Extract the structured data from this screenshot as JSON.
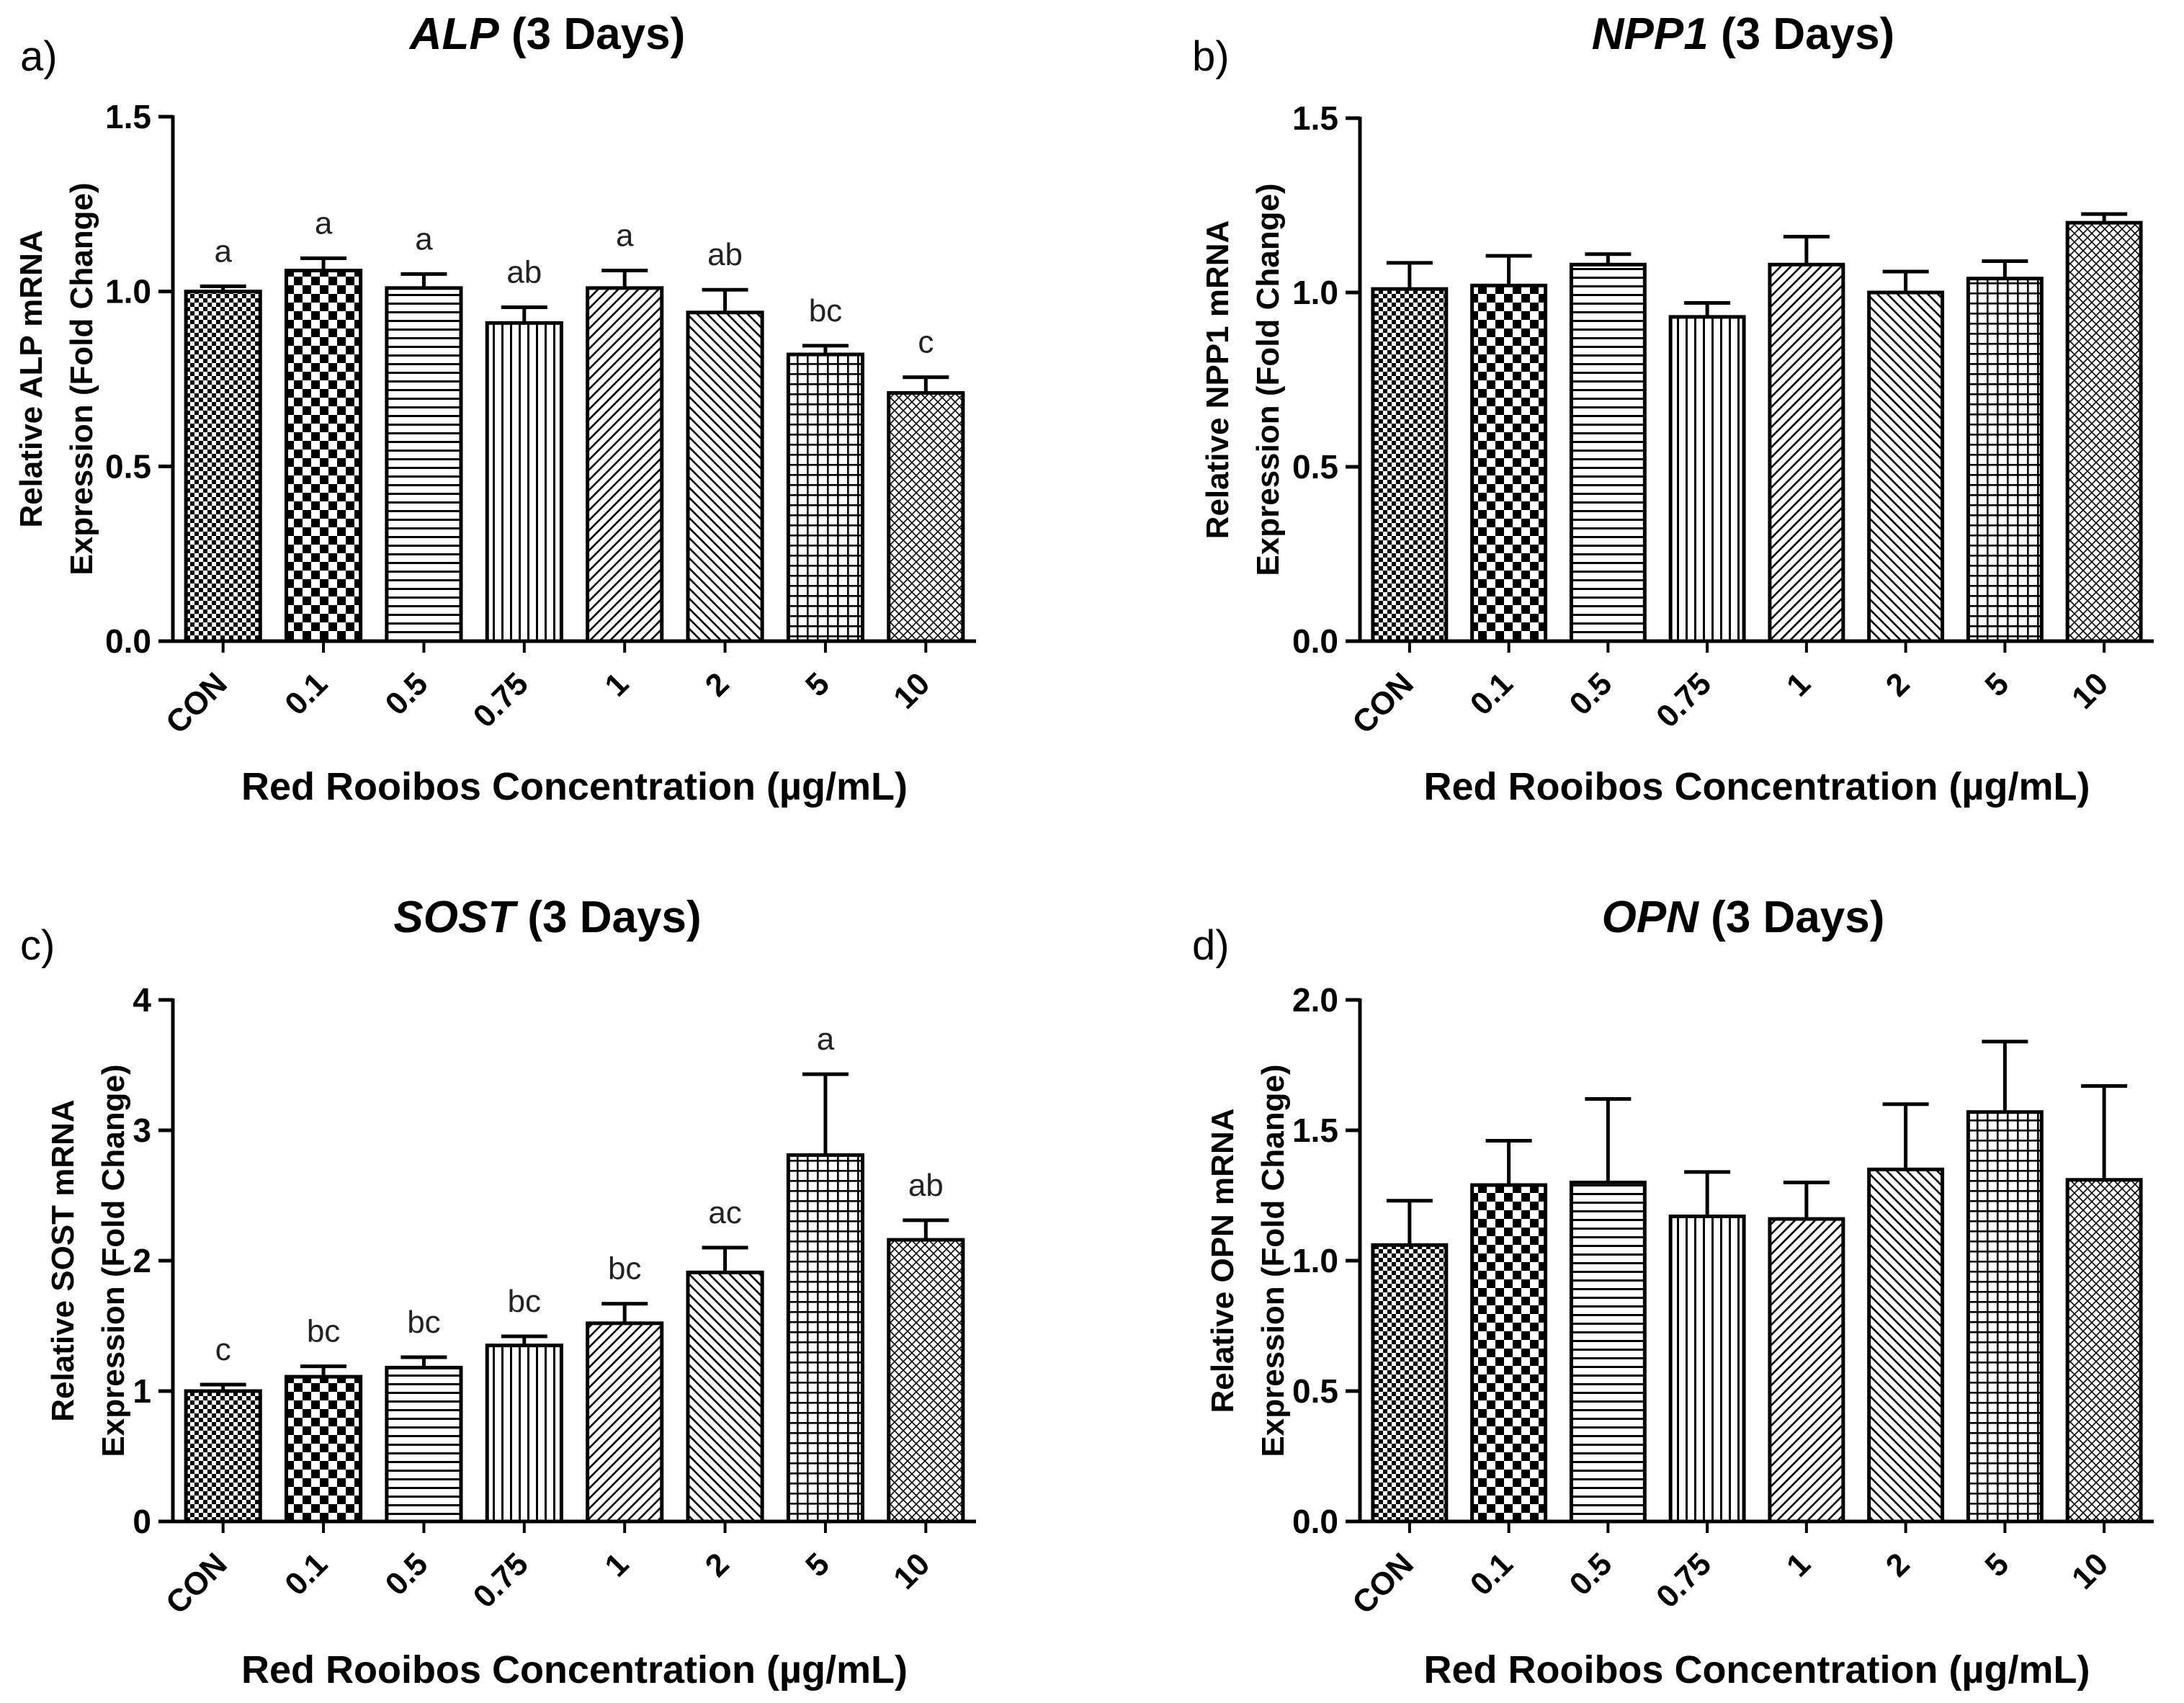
{
  "chart_data": [
    {
      "panel": "a)",
      "type": "bar",
      "title_gene": "ALP",
      "title_suffix": " (3 Days)",
      "ylabel_line1": "Relative ALP mRNA",
      "ylabel_line2": "Expression (Fold Change)",
      "xlabel": "Red Rooibos Concentration (µg/mL)",
      "categories": [
        "CON",
        "0.1",
        "0.5",
        "0.75",
        "1",
        "2",
        "5",
        "10"
      ],
      "values": [
        1.0,
        1.06,
        1.01,
        0.91,
        1.01,
        0.94,
        0.82,
        0.71
      ],
      "errors": [
        0.015,
        0.035,
        0.04,
        0.045,
        0.05,
        0.065,
        0.025,
        0.045
      ],
      "significance": [
        "a",
        "a",
        "a",
        "ab",
        "a",
        "ab",
        "bc",
        "c"
      ],
      "ylim": [
        0,
        1.5
      ],
      "yticks": [
        "0.0",
        "0.5",
        "1.0",
        "1.5"
      ],
      "ytick_values": [
        0,
        0.5,
        1.0,
        1.5
      ]
    },
    {
      "panel": "b)",
      "type": "bar",
      "title_gene": "NPP1",
      "title_suffix": " (3 Days)",
      "ylabel_line1": "Relative NPP1 mRNA",
      "ylabel_line2": "Expression (Fold Change)",
      "xlabel": "Red Rooibos Concentration (µg/mL)",
      "categories": [
        "CON",
        "0.1",
        "0.5",
        "0.75",
        "1",
        "2",
        "5",
        "10"
      ],
      "values": [
        1.01,
        1.02,
        1.08,
        0.93,
        1.08,
        1.0,
        1.04,
        1.2
      ],
      "errors": [
        0.075,
        0.085,
        0.03,
        0.04,
        0.08,
        0.06,
        0.05,
        0.025
      ],
      "significance": [],
      "ylim": [
        0,
        1.5
      ],
      "yticks": [
        "0.0",
        "0.5",
        "1.0",
        "1.5"
      ],
      "ytick_values": [
        0,
        0.5,
        1.0,
        1.5
      ]
    },
    {
      "panel": "c)",
      "type": "bar",
      "title_gene": "SOST",
      "title_suffix": " (3 Days)",
      "ylabel_line1": "Relative  SOST mRNA",
      "ylabel_line2": "Expression (Fold Change)",
      "xlabel": "Red Rooibos Concentration (µg/mL)",
      "categories": [
        "CON",
        "0.1",
        "0.5",
        "0.75",
        "1",
        "2",
        "5",
        "10"
      ],
      "values": [
        1.0,
        1.11,
        1.18,
        1.35,
        1.52,
        1.91,
        2.81,
        2.16
      ],
      "errors": [
        0.05,
        0.08,
        0.08,
        0.07,
        0.15,
        0.19,
        0.62,
        0.15
      ],
      "significance": [
        "c",
        "bc",
        "bc",
        "bc",
        "bc",
        "ac",
        "a",
        "ab"
      ],
      "ylim": [
        0,
        4
      ],
      "yticks": [
        "0",
        "1",
        "2",
        "3",
        "4"
      ],
      "ytick_values": [
        0,
        1,
        2,
        3,
        4
      ]
    },
    {
      "panel": "d)",
      "type": "bar",
      "title_gene": "OPN",
      "title_suffix": " (3 Days)",
      "ylabel_line1": "Relative  OPN mRNA",
      "ylabel_line2": "Expression (Fold Change)",
      "xlabel": "Red Rooibos Concentration (µg/mL)",
      "categories": [
        "CON",
        "0.1",
        "0.5",
        "0.75",
        "1",
        "2",
        "5",
        "10"
      ],
      "values": [
        1.06,
        1.29,
        1.3,
        1.17,
        1.16,
        1.35,
        1.57,
        1.31
      ],
      "errors": [
        0.17,
        0.17,
        0.32,
        0.17,
        0.14,
        0.25,
        0.27,
        0.36
      ],
      "significance": [],
      "ylim": [
        0,
        2.0
      ],
      "yticks": [
        "0.0",
        "0.5",
        "1.0",
        "1.5",
        "2.0"
      ],
      "ytick_values": [
        0,
        0.5,
        1.0,
        1.5,
        2.0
      ]
    }
  ]
}
